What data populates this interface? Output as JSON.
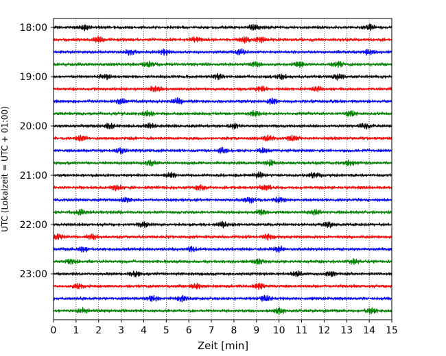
{
  "chart_data": {
    "type": "line",
    "xlabel": "Zeit  [min]",
    "ylabel": "UTC (Lokalzeit = UTC + 01:00)",
    "xlim": [
      0,
      15
    ],
    "x_ticks": [
      "0",
      "1",
      "2",
      "3",
      "4",
      "5",
      "6",
      "7",
      "8",
      "9",
      "10",
      "11",
      "12",
      "13",
      "14",
      "15"
    ],
    "y_ticks": [
      {
        "label": "18:00",
        "trace": 0
      },
      {
        "label": "19:00",
        "trace": 4
      },
      {
        "label": "20:00",
        "trace": 8
      },
      {
        "label": "21:00",
        "trace": 12
      },
      {
        "label": "22:00",
        "trace": 16
      },
      {
        "label": "23:00",
        "trace": 20
      }
    ],
    "trace_interval_min": 15,
    "trace_count": 24,
    "trace_colors": [
      "#000000",
      "#ff0000",
      "#0000ff",
      "#008000"
    ],
    "grid_x": "dotted vertical lines at each minute",
    "bursts": [
      [
        1.4,
        8.9,
        14.0
      ],
      [
        2.0,
        6.3,
        8.5,
        9.2
      ],
      [
        3.4,
        4.9,
        8.3,
        14.0
      ],
      [
        4.2,
        9.0,
        10.9,
        12.6
      ],
      [
        2.3,
        7.3,
        10.1,
        12.6
      ],
      [
        4.5,
        9.2,
        11.7
      ],
      [
        3.0,
        5.5,
        9.7
      ],
      [
        4.2,
        8.9,
        13.2
      ],
      [
        2.5,
        4.3,
        8.0,
        13.8
      ],
      [
        1.2,
        9.5,
        10.6
      ],
      [
        3.0,
        7.5,
        9.3
      ],
      [
        4.3,
        9.6,
        13.1
      ],
      [
        5.2,
        9.1,
        11.6
      ],
      [
        2.8,
        6.5,
        9.4
      ],
      [
        3.2,
        8.7,
        10.0
      ],
      [
        1.2,
        9.2,
        11.6
      ],
      [
        4.0,
        7.5,
        12.2
      ],
      [
        0.2,
        1.7,
        9.5
      ],
      [
        1.3,
        6.1,
        10.0
      ],
      [
        0.8,
        9.1,
        13.3
      ],
      [
        3.6,
        10.8,
        12.3
      ],
      [
        1.1,
        6.3,
        9.1
      ],
      [
        4.4,
        5.7,
        9.4
      ],
      [
        1.3,
        10.0,
        14.1
      ]
    ]
  }
}
